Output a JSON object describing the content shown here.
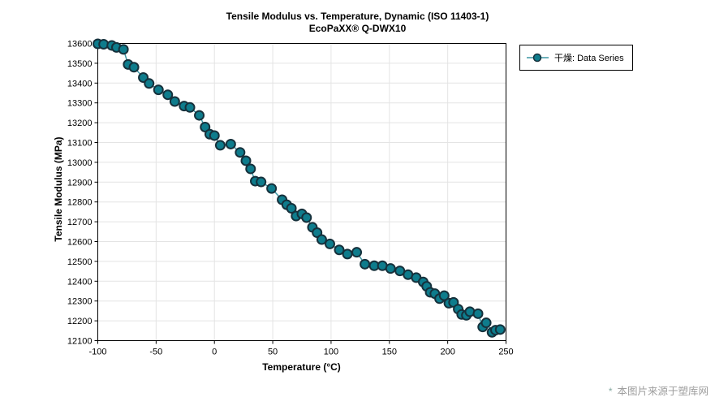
{
  "chart": {
    "title": "Tensile Modulus vs. Temperature, Dynamic (ISO 11403-1)",
    "subtitle": "EcoPaXX® Q-DWX10",
    "xlabel": "Temperature (°C)",
    "ylabel": "Tensile Modulus (MPa)"
  },
  "legend": {
    "label": "干燥: Data Series"
  },
  "watermark": {
    "asterisk": "*",
    "text": "本图片来源于塑库网"
  },
  "colors": {
    "marker_fill": "#0E7C8C",
    "marker_stroke": "#16313C",
    "line": "#3D96A4",
    "grid": "#E4E4E4",
    "axis": "#000000",
    "background": "#FFFFFF"
  },
  "chart_data": {
    "type": "line",
    "title": "Tensile Modulus vs. Temperature, Dynamic (ISO 11403-1)",
    "subtitle": "EcoPaXX® Q-DWX10",
    "xlabel": "Temperature (°C)",
    "ylabel": "Tensile Modulus (MPa)",
    "xlim": [
      -100,
      250
    ],
    "ylim": [
      12100,
      13600
    ],
    "x_ticks": [
      -100,
      -50,
      0,
      50,
      100,
      150,
      200,
      250
    ],
    "y_ticks": [
      12100,
      12200,
      12300,
      12400,
      12500,
      12600,
      12700,
      12800,
      12900,
      13000,
      13100,
      13200,
      13300,
      13400,
      13500,
      13600
    ],
    "grid": true,
    "legend_position": "outside-top-right",
    "marker": "circle",
    "series": [
      {
        "name": "干燥: Data Series",
        "points": [
          [
            -100,
            13598
          ],
          [
            -95,
            13596
          ],
          [
            -88,
            13590
          ],
          [
            -84,
            13580
          ],
          [
            -78,
            13570
          ],
          [
            -74,
            13494
          ],
          [
            -69,
            13480
          ],
          [
            -61,
            13428
          ],
          [
            -56,
            13398
          ],
          [
            -48,
            13366
          ],
          [
            -40,
            13341
          ],
          [
            -34,
            13307
          ],
          [
            -26,
            13284
          ],
          [
            -21,
            13277
          ],
          [
            -13,
            13237
          ],
          [
            -8,
            13178
          ],
          [
            -4,
            13142
          ],
          [
            0,
            13135
          ],
          [
            5,
            13086
          ],
          [
            14,
            13092
          ],
          [
            22,
            13050
          ],
          [
            27,
            13008
          ],
          [
            31,
            12967
          ],
          [
            35,
            12905
          ],
          [
            40,
            12901
          ],
          [
            49,
            12868
          ],
          [
            58,
            12811
          ],
          [
            62,
            12786
          ],
          [
            66,
            12768
          ],
          [
            70,
            12729
          ],
          [
            75,
            12740
          ],
          [
            79,
            12721
          ],
          [
            84,
            12672
          ],
          [
            88,
            12645
          ],
          [
            92,
            12610
          ],
          [
            99,
            12588
          ],
          [
            107,
            12558
          ],
          [
            114,
            12537
          ],
          [
            122,
            12546
          ],
          [
            129,
            12486
          ],
          [
            137,
            12478
          ],
          [
            144,
            12478
          ],
          [
            151,
            12464
          ],
          [
            159,
            12452
          ],
          [
            166,
            12433
          ],
          [
            173,
            12418
          ],
          [
            179,
            12396
          ],
          [
            182,
            12374
          ],
          [
            185,
            12344
          ],
          [
            189,
            12337
          ],
          [
            193,
            12312
          ],
          [
            197,
            12327
          ],
          [
            201,
            12289
          ],
          [
            205,
            12293
          ],
          [
            209,
            12259
          ],
          [
            212,
            12232
          ],
          [
            216,
            12228
          ],
          [
            219,
            12246
          ],
          [
            226,
            12236
          ],
          [
            230,
            12169
          ],
          [
            233,
            12190
          ],
          [
            238,
            12142
          ],
          [
            241,
            12153
          ],
          [
            245,
            12156
          ]
        ]
      }
    ]
  }
}
